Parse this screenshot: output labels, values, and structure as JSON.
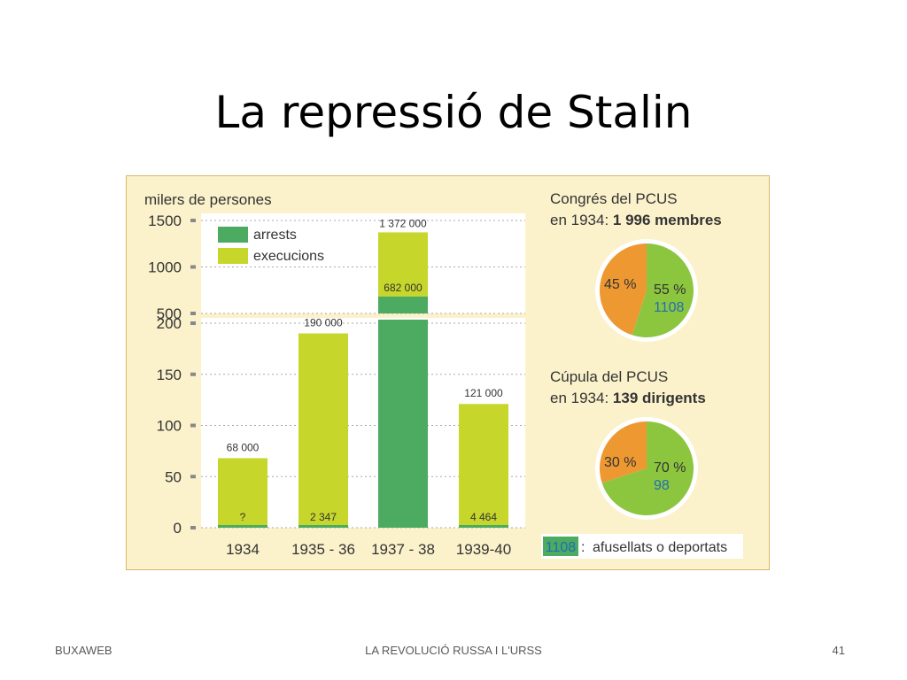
{
  "slide": {
    "title": "La repressió de Stalin"
  },
  "footer": {
    "left": "BUXAWEB",
    "center": "LA REVOLUCIÓ RUSSA I L'URSS",
    "page": "41"
  },
  "colors": {
    "arrests": "#4caa61",
    "executions": "#c6d62a",
    "pie_orange": "#ee9832",
    "pie_green": "#8cc63f",
    "panel_bg": "#fbf2cb",
    "plot_bg": "#ffffff",
    "number_blue": "#1f6eb5"
  },
  "chart_data": [
    {
      "type": "bar",
      "ylabel": "milers de persones",
      "categories": [
        "1934",
        "1935 - 36",
        "1937 - 38",
        "1939-40"
      ],
      "y_ticks_upper": [
        "1500",
        "1000",
        "500"
      ],
      "y_ticks_lower": [
        "200",
        "150",
        "100",
        "50",
        "0"
      ],
      "axis_break": true,
      "series": [
        {
          "name": "arrests",
          "values": [
            68,
            190,
            1372,
            121
          ],
          "labels": [
            "68 000",
            "190 000",
            "1 372 000",
            "121 000"
          ]
        },
        {
          "name": "execucions",
          "values": [
            null,
            2.347,
            682,
            4.464
          ],
          "labels": [
            "?",
            "2 347",
            "682 000",
            "4 464"
          ]
        }
      ],
      "legend": "top-left"
    },
    {
      "type": "pie",
      "title_line1": "Congrés del PCUS",
      "title_line2_normal": "en 1934:",
      "title_line2_bold": "1 996 membres",
      "slices": [
        {
          "label": "55 %",
          "value": 55,
          "count": "1108",
          "color": "#8cc63f"
        },
        {
          "label": "45 %",
          "value": 45,
          "color": "#ee9832"
        }
      ]
    },
    {
      "type": "pie",
      "title_line1": "Cúpula del PCUS",
      "title_line2_normal": "en 1934:",
      "title_line2_bold": "139 dirigents",
      "slices": [
        {
          "label": "70 %",
          "value": 70,
          "count": "98",
          "color": "#8cc63f"
        },
        {
          "label": "30 %",
          "value": 30,
          "color": "#ee9832"
        }
      ]
    }
  ],
  "key_note": {
    "number": "1108",
    "sep": ":",
    "text": "afusellats o deportats"
  }
}
